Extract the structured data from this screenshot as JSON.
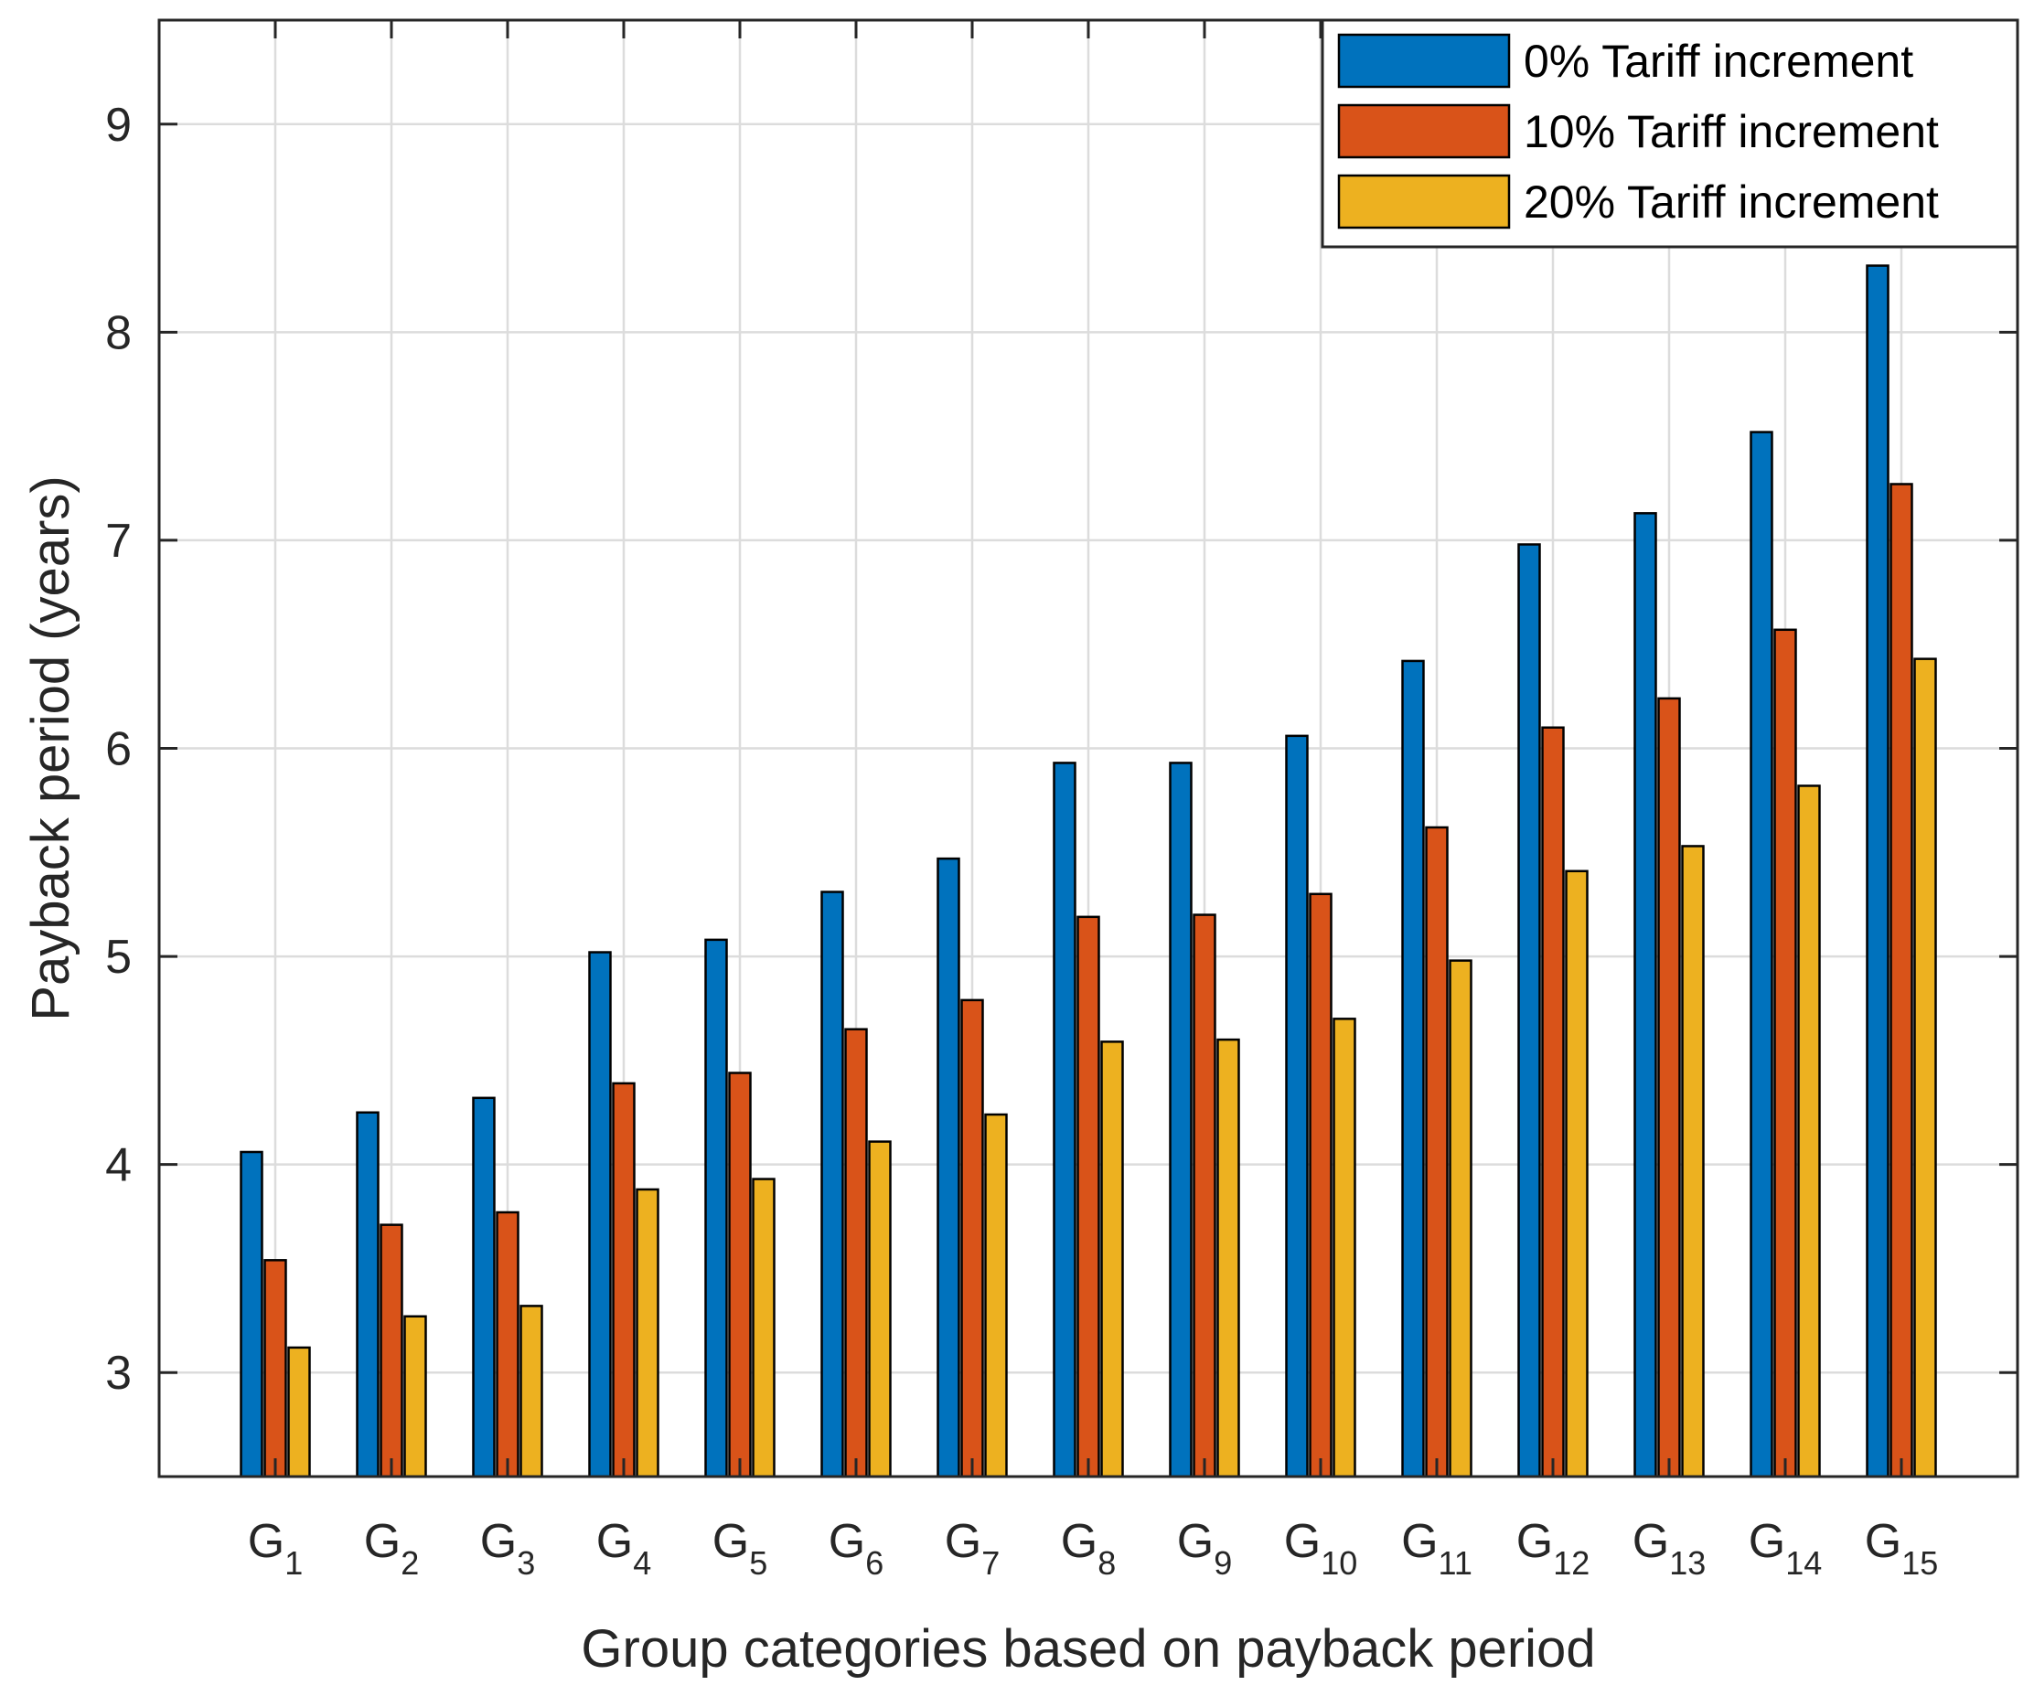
{
  "chart_data": {
    "type": "bar",
    "title": "",
    "xlabel": "Group categories based on payback period",
    "ylabel": "Payback period (years)",
    "ylim": [
      2.5,
      9.5
    ],
    "yticks": [
      3,
      4,
      5,
      6,
      7,
      8,
      9
    ],
    "grid": true,
    "legend_position": "top-right",
    "categories": [
      {
        "base": "G",
        "sub": "1"
      },
      {
        "base": "G",
        "sub": "2"
      },
      {
        "base": "G",
        "sub": "3"
      },
      {
        "base": "G",
        "sub": "4"
      },
      {
        "base": "G",
        "sub": "5"
      },
      {
        "base": "G",
        "sub": "6"
      },
      {
        "base": "G",
        "sub": "7"
      },
      {
        "base": "G",
        "sub": "8"
      },
      {
        "base": "G",
        "sub": "9"
      },
      {
        "base": "G",
        "sub": "10"
      },
      {
        "base": "G",
        "sub": "11"
      },
      {
        "base": "G",
        "sub": "12"
      },
      {
        "base": "G",
        "sub": "13"
      },
      {
        "base": "G",
        "sub": "14"
      },
      {
        "base": "G",
        "sub": "15"
      }
    ],
    "series": [
      {
        "name": "0% Tariff increment",
        "color": "#0072BD",
        "values": [
          4.06,
          4.25,
          4.32,
          5.02,
          5.08,
          5.31,
          5.47,
          5.93,
          5.93,
          6.06,
          6.42,
          6.98,
          7.13,
          7.52,
          8.32
        ]
      },
      {
        "name": "10% Tariff increment",
        "color": "#D95319",
        "values": [
          3.54,
          3.71,
          3.77,
          4.39,
          4.44,
          4.65,
          4.79,
          5.19,
          5.2,
          5.3,
          5.62,
          6.1,
          6.24,
          6.57,
          7.27
        ]
      },
      {
        "name": "20% Tariff increment",
        "color": "#EDB120",
        "values": [
          3.12,
          3.27,
          3.32,
          3.88,
          3.93,
          4.11,
          4.24,
          4.59,
          4.6,
          4.7,
          4.98,
          5.41,
          5.53,
          5.82,
          6.43
        ]
      }
    ]
  }
}
